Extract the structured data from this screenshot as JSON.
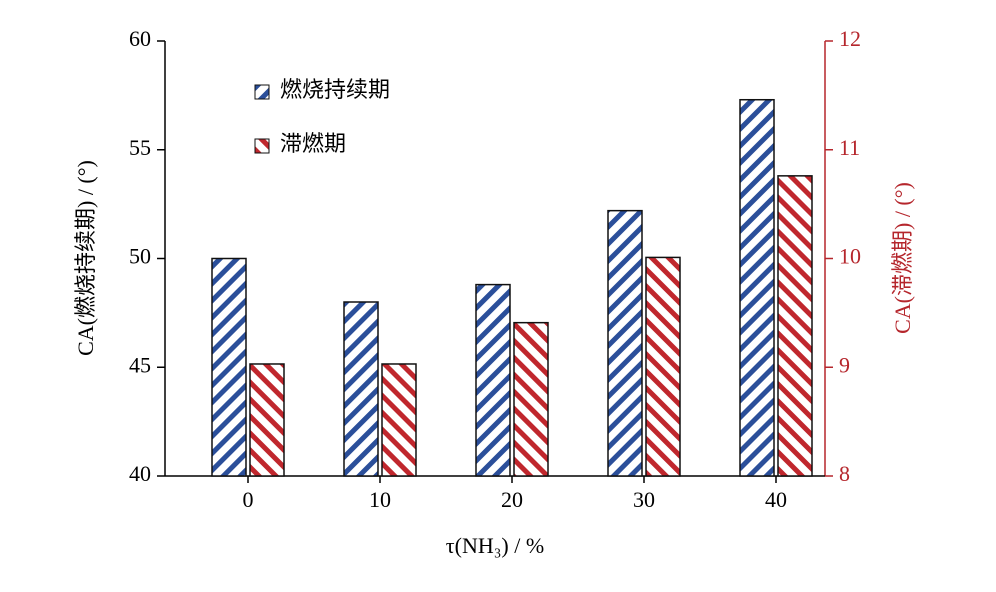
{
  "chart_data": {
    "type": "bar",
    "categories": [
      "0",
      "10",
      "20",
      "30",
      "40"
    ],
    "x_label": "τ(NH₃) / %",
    "y_label": "CA(燃烧持续期) / (°)",
    "y2_label": "CA(滞燃期) / (°)",
    "ylim": [
      40,
      60
    ],
    "yticks": [
      40,
      45,
      50,
      55,
      60
    ],
    "y2lim": [
      8,
      12
    ],
    "y2ticks": [
      8,
      9,
      10,
      11,
      12
    ],
    "y2_color": "#b5262c",
    "legend": "upper left",
    "series": [
      {
        "name": "燃烧持续期",
        "color": "#2b4f9a",
        "values": [
          50,
          48,
          48.8,
          52.2,
          57.3
        ]
      },
      {
        "name": "滞燃期",
        "color": "#c0272d",
        "axis": "y2",
        "values": [
          9.03,
          9.03,
          9.41,
          10.01,
          10.76
        ]
      }
    ]
  }
}
